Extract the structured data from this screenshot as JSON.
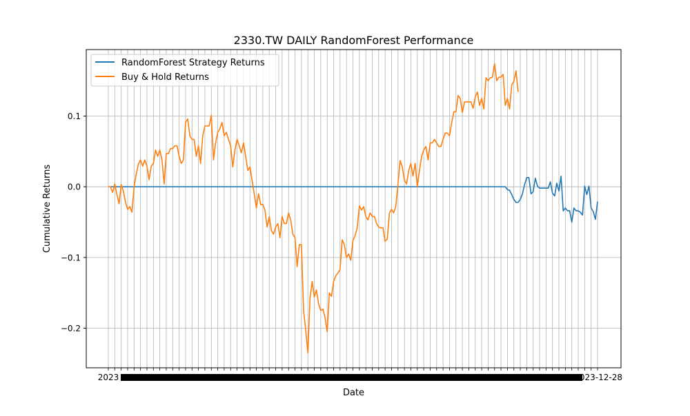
{
  "chart_data": {
    "type": "line",
    "title": "2330.TW DAILY RandomForest Performance",
    "xlabel": "Date",
    "ylabel": "Cumulative Returns",
    "y_ticks": [
      -0.2,
      -0.1,
      0.0,
      0.1
    ],
    "y_tick_labels": [
      "−0.2",
      "−0.1",
      "0.0",
      "0.1"
    ],
    "ylim": [
      -0.256,
      0.194
    ],
    "x_tick_labels_note": "2023 … 2023-12-28",
    "x_tick_left_label": "2023",
    "x_tick_right_label": "2023-12-28",
    "grid": true,
    "legend_position": "upper-left",
    "series": [
      {
        "name": "RandomForest Strategy Returns",
        "color": "#1f77b4",
        "values": [
          0,
          0,
          0,
          0,
          0,
          0,
          0,
          0,
          0,
          0,
          0,
          0,
          0,
          0,
          0,
          0,
          0,
          0,
          0,
          0,
          0,
          0,
          0,
          0,
          0,
          0,
          0,
          0,
          0,
          0,
          0,
          0,
          0,
          0,
          0,
          0,
          0,
          0,
          0,
          0,
          0,
          0,
          0,
          0,
          0,
          0,
          0,
          0,
          0,
          0,
          0,
          0,
          0,
          0,
          0,
          0,
          0,
          0,
          0,
          0,
          0,
          0,
          0,
          0,
          0,
          0,
          0,
          0,
          0,
          0,
          0,
          0,
          0,
          0,
          0,
          0,
          0,
          0,
          0,
          0,
          0,
          0,
          0,
          0,
          0,
          0,
          0,
          0,
          0,
          0,
          0,
          0,
          0,
          0,
          0,
          0,
          0,
          0,
          0,
          0,
          0,
          0,
          0,
          0,
          0,
          0,
          0,
          0,
          0,
          0,
          0,
          0,
          0,
          0,
          0,
          0,
          0,
          0,
          0,
          0,
          0,
          0,
          0,
          0,
          0,
          0,
          0,
          0,
          0,
          0,
          0,
          0,
          0,
          0,
          0,
          0,
          0,
          0,
          0,
          0,
          0,
          0,
          0,
          0,
          0,
          0,
          0,
          0,
          0,
          0,
          0,
          0,
          0,
          0,
          0,
          0,
          0,
          0,
          0,
          0,
          0,
          0,
          0,
          0,
          0,
          0,
          0,
          0,
          0,
          0,
          0,
          0,
          0,
          0,
          0,
          0,
          0,
          0,
          0,
          0,
          0,
          0,
          0,
          0,
          0,
          0,
          -0.004,
          -0.005,
          -0.011,
          -0.018,
          -0.022,
          -0.022,
          -0.018,
          -0.01,
          0.003,
          0.013,
          0.013,
          -0.01,
          -0.007,
          0.012,
          0.001,
          -0.002,
          -0.002,
          -0.002,
          -0.002,
          -0.002,
          0.007,
          -0.009,
          -0.013,
          0.005,
          -0.006,
          0.015,
          -0.034,
          -0.03,
          -0.034,
          -0.034,
          -0.05,
          -0.03,
          -0.034,
          -0.034,
          -0.036,
          -0.04,
          0.001,
          -0.011,
          0.001,
          -0.03,
          -0.035,
          -0.046,
          -0.021
        ]
      },
      {
        "name": "Buy & Hold Returns",
        "color": "#ff7f0e",
        "values": [
          0,
          0,
          -0.008,
          0.004,
          -0.011,
          -0.024,
          0.003,
          -0.006,
          -0.022,
          -0.032,
          -0.028,
          -0.036,
          0,
          0.018,
          0.032,
          0.038,
          0.029,
          0.038,
          0.029,
          0.01,
          0.029,
          0.033,
          0.052,
          0.043,
          0.052,
          0.038,
          0.004,
          0.047,
          0.047,
          0.054,
          0.054,
          0.058,
          0.058,
          0.043,
          0.033,
          0.038,
          0.091,
          0.096,
          0.072,
          0.067,
          0.067,
          0.043,
          0.058,
          0.033,
          0.072,
          0.086,
          0.086,
          0.086,
          0.101,
          0.038,
          0.062,
          0.077,
          0.082,
          0.091,
          0.072,
          0.077,
          0.067,
          0.058,
          0.028,
          0.052,
          0.067,
          0.058,
          0.048,
          0.062,
          0.043,
          0.023,
          0.028,
          0.009,
          -0.01,
          -0.03,
          -0.01,
          -0.025,
          -0.025,
          -0.033,
          -0.057,
          -0.042,
          -0.062,
          -0.067,
          -0.057,
          -0.052,
          -0.072,
          -0.042,
          -0.052,
          -0.052,
          -0.037,
          -0.047,
          -0.067,
          -0.072,
          -0.113,
          -0.082,
          -0.082,
          -0.175,
          -0.203,
          -0.235,
          -0.157,
          -0.134,
          -0.156,
          -0.146,
          -0.166,
          -0.175,
          -0.173,
          -0.185,
          -0.205,
          -0.15,
          -0.155,
          -0.134,
          -0.126,
          -0.122,
          -0.117,
          -0.075,
          -0.082,
          -0.1,
          -0.095,
          -0.104,
          -0.076,
          -0.069,
          -0.058,
          -0.027,
          -0.033,
          -0.028,
          -0.042,
          -0.047,
          -0.037,
          -0.042,
          -0.042,
          -0.052,
          -0.057,
          -0.058,
          -0.058,
          -0.077,
          -0.074,
          -0.037,
          -0.032,
          -0.037,
          -0.027,
          0.004,
          0.037,
          0.028,
          0.009,
          0.004,
          0.023,
          0.033,
          0.015,
          0.033,
          0,
          0.023,
          0.043,
          0.052,
          0.057,
          0.038,
          0.062,
          0.062,
          0.067,
          0.062,
          0.057,
          0.057,
          0.067,
          0.076,
          0.076,
          0.072,
          0.09,
          0.106,
          0.106,
          0.129,
          0.125,
          0.105,
          0.12,
          0.12,
          0.12,
          0.12,
          0.111,
          0.127,
          0.134,
          0.115,
          0.125,
          0.11,
          0.154,
          0.15,
          0.154,
          0.155,
          0.174,
          0.15,
          0.155,
          0.155,
          0.159,
          0.115,
          0.125,
          0.11,
          0.144,
          0.149,
          0.164,
          0.134
        ]
      }
    ]
  }
}
